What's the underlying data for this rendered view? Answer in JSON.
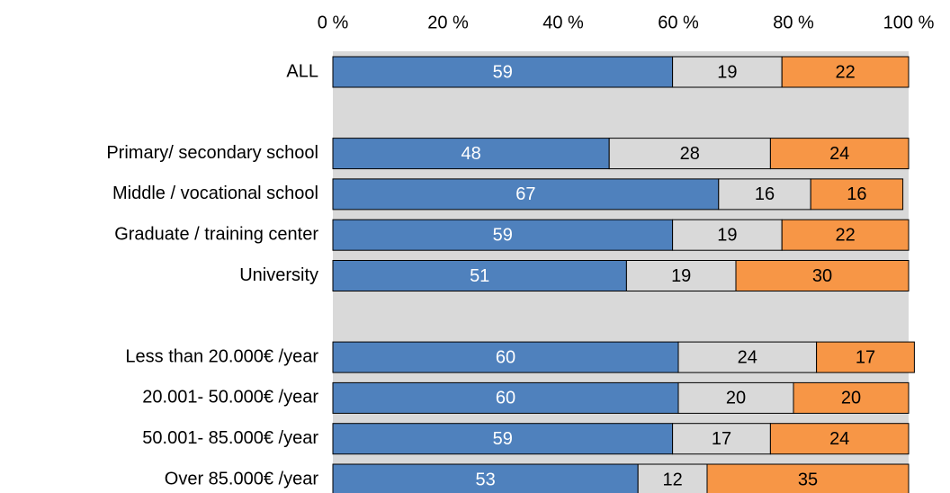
{
  "chart_data": {
    "type": "stacked-bar-horizontal",
    "categories": [
      "ALL",
      null,
      "Primary/ secondary school",
      "Middle / vocational school",
      "Graduate / training center",
      "University",
      null,
      "Less than 20.000€ /year",
      "20.001- 50.000€ /year",
      "50.001- 85.000€ /year",
      "Over 85.000€ /year"
    ],
    "series": [
      {
        "color": "#4f81bd",
        "label_color": "#ffffff",
        "values": [
          59,
          null,
          48,
          67,
          59,
          51,
          null,
          60,
          60,
          59,
          53
        ]
      },
      {
        "color": "#d9d9d9",
        "label_color": "#000000",
        "values": [
          19,
          null,
          28,
          16,
          19,
          19,
          null,
          24,
          20,
          17,
          12
        ]
      },
      {
        "color": "#f79646",
        "label_color": "#000000",
        "values": [
          22,
          null,
          24,
          16,
          22,
          30,
          null,
          17,
          20,
          24,
          35
        ]
      }
    ],
    "xlim": [
      0,
      100
    ],
    "xticks": [
      {
        "value": 0,
        "label": "0 %"
      },
      {
        "value": 20,
        "label": "20 %"
      },
      {
        "value": 40,
        "label": "40 %"
      },
      {
        "value": 60,
        "label": "60 %"
      },
      {
        "value": 80,
        "label": "80 %"
      },
      {
        "value": 100,
        "label": "100 %"
      }
    ],
    "background": "#d9d9d9"
  }
}
